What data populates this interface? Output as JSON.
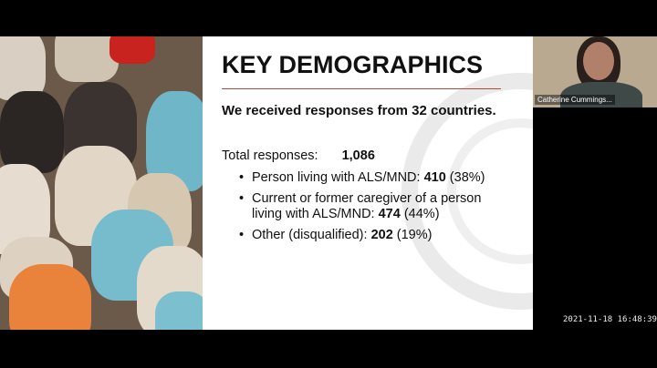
{
  "slide": {
    "title": "KEY DEMOGRAPHICS",
    "subtitle": "We received responses from 32 countries.",
    "total_label": "Total responses:",
    "total_value": "1,086",
    "items": [
      {
        "text": "Person living with ALS/MND: ",
        "value": "410",
        "pct": " (38%)"
      },
      {
        "text": "Current or former caregiver of a person living with ALS/MND: ",
        "value": "474",
        "pct": " (44%)"
      },
      {
        "text": "Other (disqualified): ",
        "value": "202",
        "pct": " (19%)"
      }
    ],
    "accent": "#b5463a"
  },
  "participant": {
    "name": "Catherine Cummings..."
  },
  "timestamp": "2021-11-18  16:48:39"
}
